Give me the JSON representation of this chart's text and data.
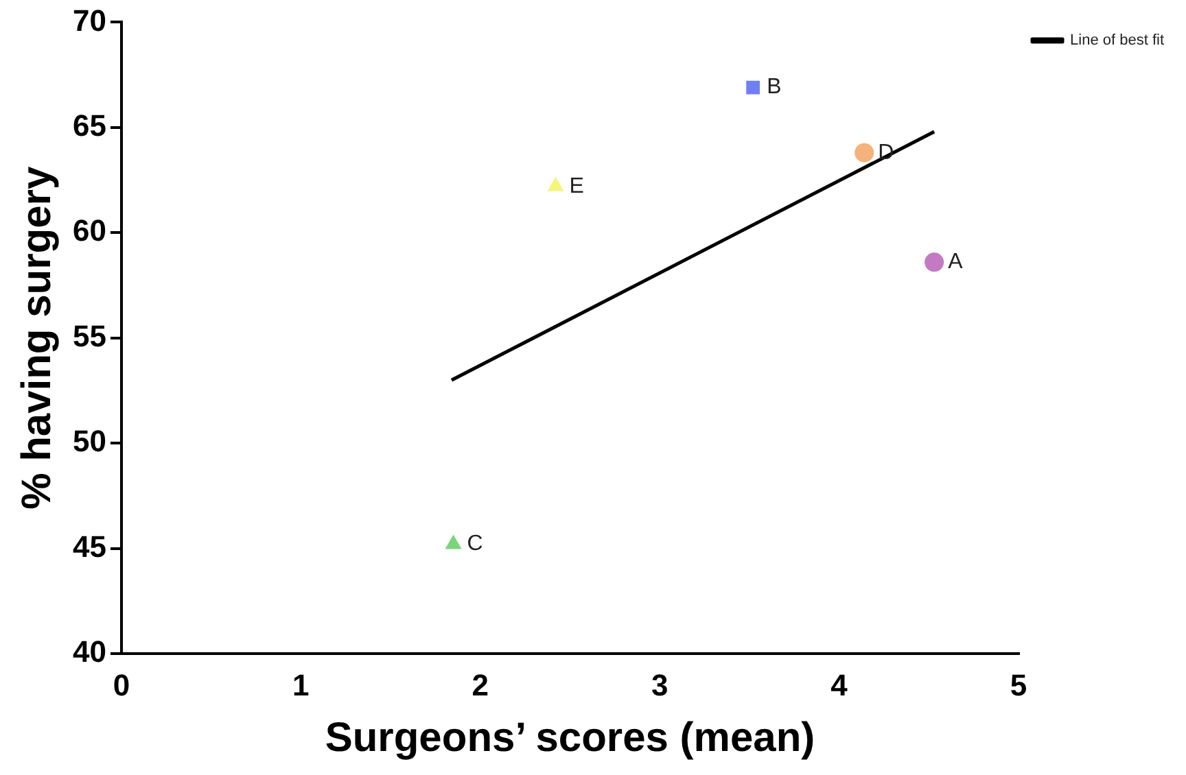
{
  "chart_data": {
    "type": "scatter",
    "xlabel": "Surgeons’ scores (mean)",
    "ylabel": "% having surgery",
    "xlim": [
      0,
      5
    ],
    "xticks": [
      0,
      1,
      2,
      3,
      4,
      5
    ],
    "ylim": [
      40,
      70
    ],
    "yticks": [
      40,
      45,
      50,
      55,
      60,
      65,
      70
    ],
    "grid": false,
    "legend": "top right",
    "series": [
      {
        "name": "A",
        "color": "#c27ac2",
        "marker": "circle",
        "x": [
          4.53
        ],
        "values": [
          58.6
        ]
      },
      {
        "name": "B",
        "color": "#6f7ff5",
        "marker": "square",
        "x": [
          3.52
        ],
        "values": [
          66.9
        ]
      },
      {
        "name": "C",
        "color": "#7ad67a",
        "marker": "triangle",
        "x": [
          1.85
        ],
        "values": [
          45.2
        ]
      },
      {
        "name": "D",
        "color": "#f5b27a",
        "marker": "circle",
        "x": [
          4.14
        ],
        "values": [
          63.8
        ]
      },
      {
        "name": "E",
        "color": "#f5f57a",
        "marker": "triangle",
        "x": [
          2.42
        ],
        "values": [
          62.2
        ]
      },
      {
        "name": "Line of best fit",
        "type": "line",
        "color": "#000000",
        "marker": "none",
        "line_style": "solid",
        "x": [
          1.84,
          4.53
        ],
        "values": [
          53.0,
          64.8
        ]
      }
    ]
  }
}
